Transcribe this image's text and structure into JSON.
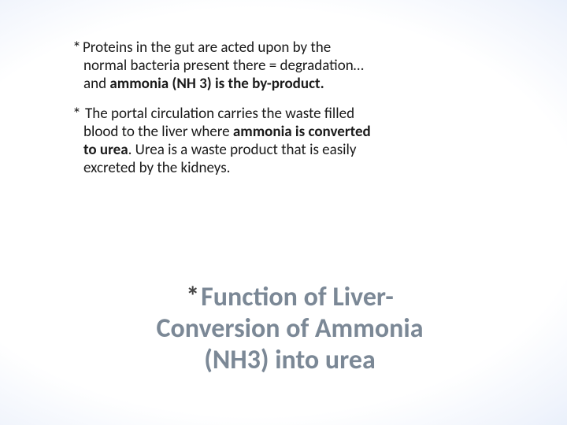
{
  "background": {
    "gradient_type": "radial",
    "center_color": "#ffffff",
    "mid_color": "#c5d8f0",
    "edge_color": "#6f9bcf"
  },
  "content": {
    "text_color": "#1a1a1a",
    "fontsize": 19,
    "asterisk": "*",
    "bullets": [
      {
        "line1_prefix": "Proteins in the gut are acted upon by the",
        "line2": "normal bacteria present there = degradation…",
        "line3_prefix": "and ",
        "line3_bold": "ammonia (NH 3) is the by-product."
      },
      {
        "line1_prefix": "The portal circulation carries the waste filled",
        "line2_prefix": "blood to the liver where ",
        "line2_bold": "ammonia is converted",
        "line3_bold": "to urea",
        "line3_rest": ". Urea is a waste product that is easily",
        "line4": "excreted by the kidneys."
      }
    ]
  },
  "title": {
    "color": "#7b8896",
    "fontsize": 34,
    "asterisk": "*",
    "line1": "Function of Liver-",
    "line2": "Conversion of Ammonia",
    "line3": "(NH3) into urea"
  }
}
